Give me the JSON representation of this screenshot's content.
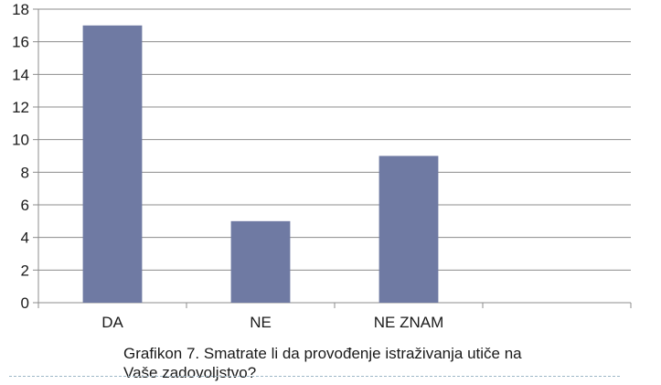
{
  "chart_data": {
    "type": "bar",
    "categories": [
      "DA",
      "NE",
      "NE ZNAM",
      ""
    ],
    "values": [
      17,
      5,
      9,
      null
    ],
    "ylim": [
      0,
      18
    ],
    "yticks": [
      0,
      2,
      4,
      6,
      8,
      10,
      12,
      14,
      16,
      18
    ],
    "grid": true,
    "xlabel": "",
    "ylabel": "",
    "bar_color": "#6f7aa3",
    "grid_color": "#8c8c8c"
  },
  "caption": {
    "line1": "Grafikon 7. Smatrate li da provođenje istraživanja utiče na",
    "line2": "Vaše zadovoljstvo?"
  }
}
